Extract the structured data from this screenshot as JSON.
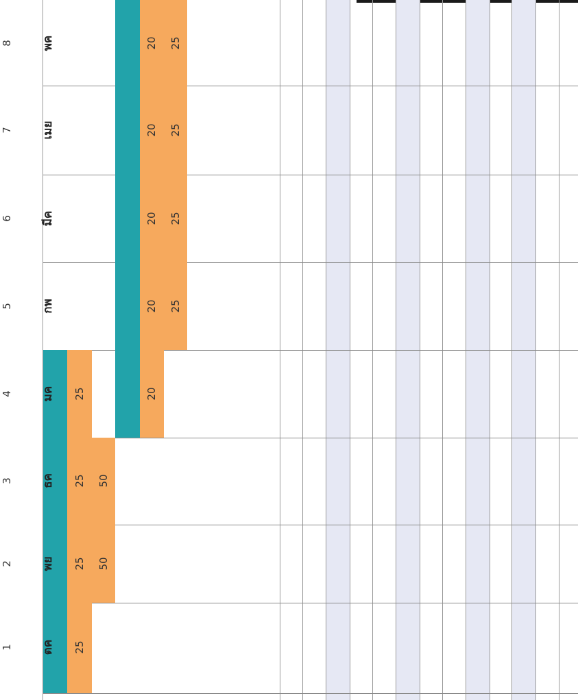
{
  "chart_data": {
    "type": "table",
    "column_numbers": [
      "1",
      "2",
      "3",
      "4",
      "5",
      "6",
      "7",
      "8"
    ],
    "months": [
      "ตค",
      "พย",
      "ธค",
      "มค",
      "กพ",
      "มีค",
      "เมย",
      "พค"
    ],
    "values_series_a": [
      "25",
      "25",
      "25",
      "25",
      "",
      "",
      "",
      ""
    ],
    "values_series_a_extra": [
      "",
      "50",
      "50",
      "",
      "",
      "",
      "",
      ""
    ],
    "values_series_b": [
      "",
      "",
      "",
      "20",
      "20",
      "20",
      "20",
      "20"
    ],
    "values_series_b_extra": [
      "",
      "",
      "",
      "",
      "25",
      "25",
      "25",
      "25"
    ],
    "colors": {
      "teal": "#22a3aa",
      "orange": "#f6a95d",
      "shade": "#e6e8f4",
      "grid": "#9a9a9a"
    }
  }
}
